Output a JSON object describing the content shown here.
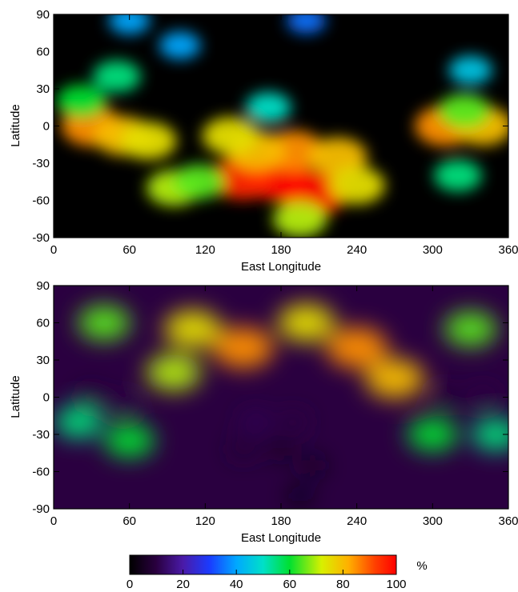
{
  "chart_data": [
    {
      "type": "heatmap",
      "xlabel": "East Longitude",
      "ylabel": "Latitude",
      "xlim": [
        0,
        360
      ],
      "ylim": [
        -90,
        90
      ],
      "xticks": [
        "0",
        "60",
        "120",
        "180",
        "240",
        "300",
        "360"
      ],
      "yticks": [
        "90",
        "60",
        "30",
        "0",
        "-30",
        "-60",
        "-90"
      ],
      "features": [
        {
          "lon": 178,
          "lat": -42,
          "value": 100
        },
        {
          "lon": 205,
          "lat": -55,
          "value": 100
        },
        {
          "lon": 150,
          "lat": -42,
          "value": 95
        },
        {
          "lon": 190,
          "lat": -20,
          "value": 85
        },
        {
          "lon": 160,
          "lat": -20,
          "value": 80
        },
        {
          "lon": 225,
          "lat": -25,
          "value": 80
        },
        {
          "lon": 140,
          "lat": -8,
          "value": 75
        },
        {
          "lon": 240,
          "lat": -48,
          "value": 75
        },
        {
          "lon": 195,
          "lat": -75,
          "value": 70
        },
        {
          "lon": 30,
          "lat": 0,
          "value": 85
        },
        {
          "lon": 55,
          "lat": -8,
          "value": 80
        },
        {
          "lon": 75,
          "lat": -12,
          "value": 75
        },
        {
          "lon": 95,
          "lat": -50,
          "value": 70
        },
        {
          "lon": 115,
          "lat": -45,
          "value": 65
        },
        {
          "lon": 22,
          "lat": 20,
          "value": 60
        },
        {
          "lon": 310,
          "lat": 0,
          "value": 85
        },
        {
          "lon": 340,
          "lat": 0,
          "value": 80
        },
        {
          "lon": 325,
          "lat": 12,
          "value": 65
        },
        {
          "lon": 320,
          "lat": -40,
          "value": 55
        },
        {
          "lon": 50,
          "lat": 40,
          "value": 55
        },
        {
          "lon": 330,
          "lat": 45,
          "value": 45
        },
        {
          "lon": 100,
          "lat": 65,
          "value": 40
        },
        {
          "lon": 60,
          "lat": 85,
          "value": 40
        },
        {
          "lon": 200,
          "lat": 85,
          "value": 35
        },
        {
          "lon": 170,
          "lat": 15,
          "value": 50
        }
      ]
    },
    {
      "type": "heatmap",
      "xlabel": "East Longitude",
      "ylabel": "Latitude",
      "xlim": [
        0,
        360
      ],
      "ylim": [
        -90,
        90
      ],
      "xticks": [
        "0",
        "60",
        "120",
        "180",
        "240",
        "300",
        "360"
      ],
      "yticks": [
        "90",
        "60",
        "30",
        "0",
        "-30",
        "-60",
        "-90"
      ],
      "features": [
        {
          "lon": 150,
          "lat": 40,
          "value": 85
        },
        {
          "lon": 240,
          "lat": 40,
          "value": 85
        },
        {
          "lon": 270,
          "lat": 15,
          "value": 80
        },
        {
          "lon": 110,
          "lat": 55,
          "value": 75
        },
        {
          "lon": 200,
          "lat": 60,
          "value": 75
        },
        {
          "lon": 40,
          "lat": 60,
          "value": 65
        },
        {
          "lon": 330,
          "lat": 55,
          "value": 65
        },
        {
          "lon": 95,
          "lat": 20,
          "value": 70
        },
        {
          "lon": 60,
          "lat": -35,
          "value": 60
        },
        {
          "lon": 300,
          "lat": -30,
          "value": 60
        },
        {
          "lon": 20,
          "lat": -20,
          "value": 55
        },
        {
          "lon": 350,
          "lat": -30,
          "value": 55
        },
        {
          "lon": 180,
          "lat": -42,
          "value": 5
        },
        {
          "lon": 205,
          "lat": -55,
          "value": 5
        },
        {
          "lon": 150,
          "lat": -42,
          "value": 8
        },
        {
          "lon": 190,
          "lat": -20,
          "value": 10
        },
        {
          "lon": 160,
          "lat": -20,
          "value": 12
        },
        {
          "lon": 30,
          "lat": 0,
          "value": 8
        },
        {
          "lon": 55,
          "lat": -8,
          "value": 10
        },
        {
          "lon": 310,
          "lat": 0,
          "value": 8
        },
        {
          "lon": 340,
          "lat": 0,
          "value": 10
        },
        {
          "lon": 195,
          "lat": -80,
          "value": 3
        }
      ]
    }
  ],
  "colorbar": {
    "ticks": [
      "0",
      "20",
      "40",
      "60",
      "80",
      "100"
    ],
    "unit": "%",
    "range": [
      0,
      100
    ]
  }
}
